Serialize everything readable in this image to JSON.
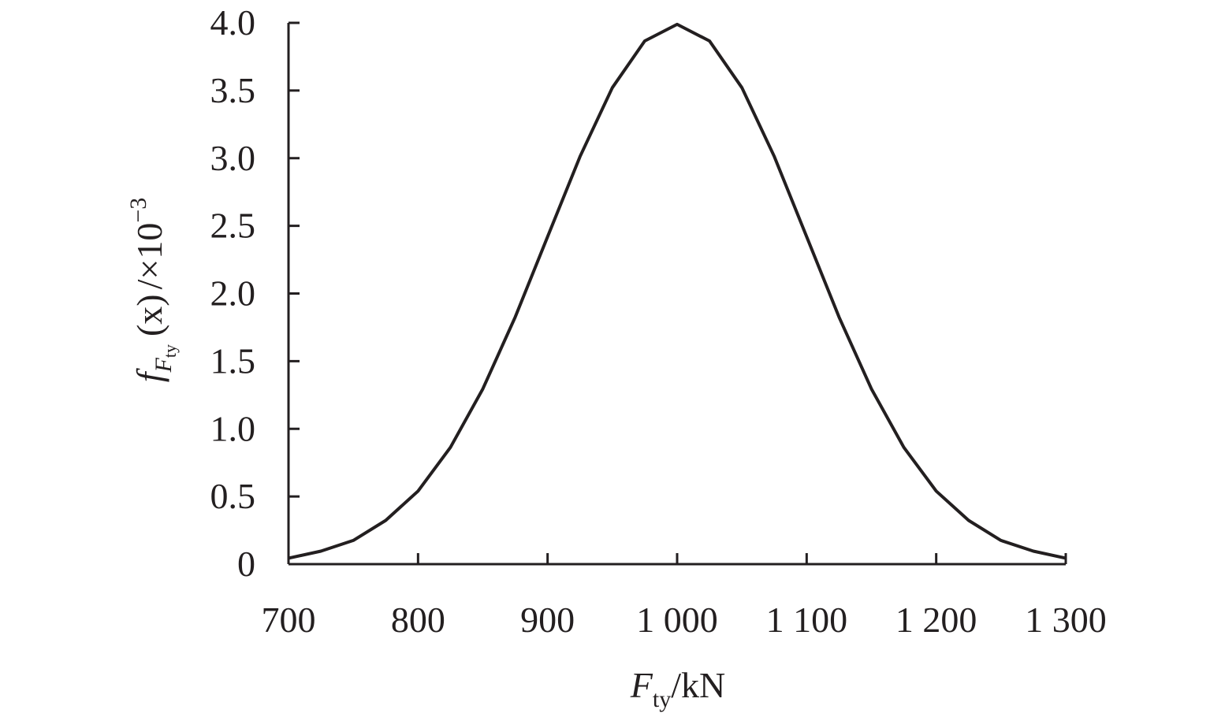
{
  "chart_data": {
    "type": "line",
    "title": "",
    "xlabel": {
      "main": "F",
      "sub": "ty",
      "suffix": "/kN"
    },
    "ylabel": {
      "prefix": "f",
      "sub": "F",
      "subsub": "ty",
      "middle": "(x)",
      "suffix": "/×10",
      "exp": "−3"
    },
    "xlim": [
      700,
      1300
    ],
    "ylim": [
      0,
      4.0
    ],
    "x_ticks": [
      700,
      800,
      900,
      1000,
      1100,
      1200,
      1300
    ],
    "x_tick_labels": [
      "700",
      "800",
      "900",
      "1 000",
      "1 100",
      "1 200",
      "1 300"
    ],
    "y_ticks": [
      0,
      0.5,
      1.0,
      1.5,
      2.0,
      2.5,
      3.0,
      3.5,
      4.0
    ],
    "y_tick_labels": [
      "0",
      "0.5",
      "1.0",
      "1.5",
      "2.0",
      "2.5",
      "3.0",
      "3.5",
      "4.0"
    ],
    "grid": false,
    "series": [
      {
        "x": [
          700,
          725,
          750,
          775,
          800,
          825,
          850,
          875,
          900,
          925,
          950,
          975,
          1000,
          1025,
          1050,
          1075,
          1100,
          1125,
          1150,
          1175,
          1200,
          1225,
          1250,
          1275,
          1300
        ],
        "y": [
          0.044,
          0.096,
          0.175,
          0.323,
          0.54,
          0.863,
          1.295,
          1.826,
          2.42,
          3.012,
          3.521,
          3.866,
          3.989,
          3.866,
          3.521,
          3.012,
          2.42,
          1.826,
          1.295,
          0.863,
          0.54,
          0.323,
          0.175,
          0.096,
          0.044
        ]
      }
    ]
  }
}
